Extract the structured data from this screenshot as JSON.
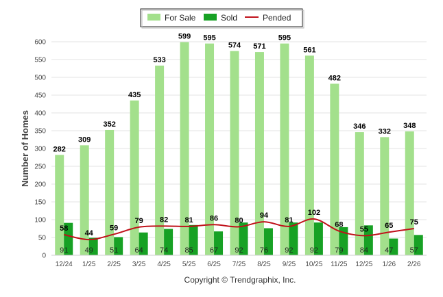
{
  "chart_data": {
    "type": "bar",
    "title": "",
    "xlabel": "",
    "ylabel": "Number of Homes",
    "ylim": [
      0,
      600
    ],
    "yticks": [
      0,
      50,
      100,
      150,
      200,
      250,
      300,
      350,
      400,
      450,
      500,
      550,
      600
    ],
    "grid": true,
    "legend_position": "top-center",
    "categories": [
      "12/24",
      "1/25",
      "2/25",
      "3/25",
      "4/25",
      "5/25",
      "6/25",
      "7/25",
      "8/25",
      "9/25",
      "10/25",
      "11/25",
      "12/25",
      "1/26",
      "2/26"
    ],
    "series": [
      {
        "name": "For Sale",
        "kind": "bar",
        "color": "#a3e08c",
        "values": [
          282,
          309,
          352,
          435,
          533,
          599,
          595,
          574,
          571,
          595,
          561,
          482,
          346,
          332,
          348
        ]
      },
      {
        "name": "Sold",
        "kind": "bar",
        "color": "#17a124",
        "values": [
          91,
          49,
          51,
          64,
          74,
          85,
          67,
          92,
          76,
          92,
          92,
          79,
          84,
          47,
          57
        ]
      },
      {
        "name": "Pended",
        "kind": "line",
        "color": "#c0111a",
        "values": [
          58,
          44,
          59,
          79,
          82,
          81,
          86,
          80,
          94,
          81,
          102,
          68,
          55,
          65,
          75
        ]
      }
    ],
    "credit": "Copyright © Trendgraphix, Inc."
  }
}
